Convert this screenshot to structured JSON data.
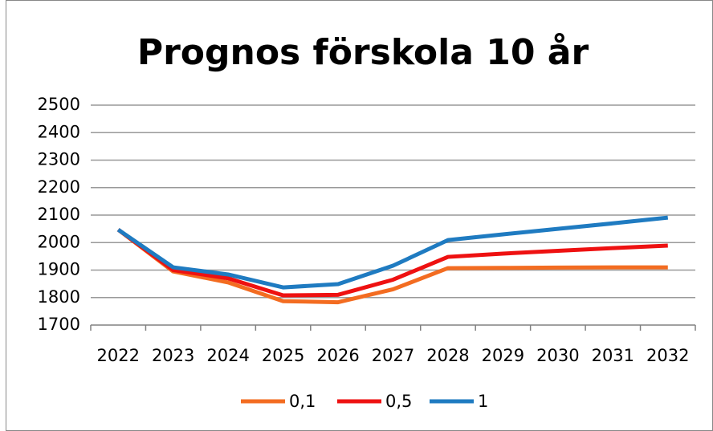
{
  "chart_data": {
    "type": "line",
    "title": "Prognos förskola 10 år",
    "categories": [
      "2022",
      "2023",
      "2024",
      "2025",
      "2026",
      "2027",
      "2028",
      "2029",
      "2030",
      "2031",
      "2032"
    ],
    "series": [
      {
        "name": "0,1",
        "color": "#f36c21",
        "values": [
          2047,
          1895,
          1855,
          1787,
          1783,
          1830,
          1907,
          1908,
          1909,
          1910,
          1910
        ]
      },
      {
        "name": "0,5",
        "color": "#ee1111",
        "values": [
          2047,
          1900,
          1870,
          1808,
          1810,
          1865,
          1948,
          1960,
          1970,
          1980,
          1989
        ]
      },
      {
        "name": "1",
        "color": "#1f7bc1",
        "values": [
          2047,
          1910,
          1884,
          1837,
          1849,
          1916,
          2009,
          2030,
          2050,
          2070,
          2091
        ]
      }
    ],
    "ylim": [
      1700,
      2500
    ],
    "yticks": [
      1700,
      1800,
      1900,
      2000,
      2100,
      2200,
      2300,
      2400,
      2500
    ],
    "grid": true,
    "legend": "bottom"
  }
}
